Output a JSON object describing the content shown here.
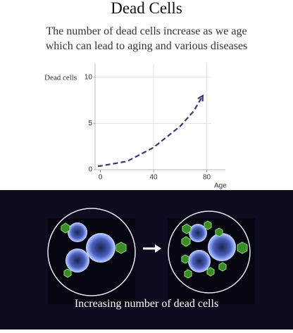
{
  "header": {
    "title": "Dead Cells",
    "subtitle": [
      "The number of dead cells increase as we age",
      "which can lead to aging and various diseases"
    ]
  },
  "chart_data": {
    "type": "line",
    "y_label": "Dead cells",
    "x_label": "Age",
    "x": [
      -2,
      0,
      20,
      40,
      60,
      70,
      77
    ],
    "series": [
      {
        "color": "#3b3878",
        "values": [
          0.4,
          0.4,
          0.9,
          2.4,
          4.7,
          6.3,
          8
        ]
      }
    ],
    "xlim": [
      -4,
      94
    ],
    "xticks": [
      0,
      40,
      80
    ],
    "ylim": [
      0,
      11.5
    ],
    "yticks": [
      0,
      5,
      10
    ],
    "grid": true
  },
  "illustration": {
    "caption": "Increasing number of dead cells"
  }
}
